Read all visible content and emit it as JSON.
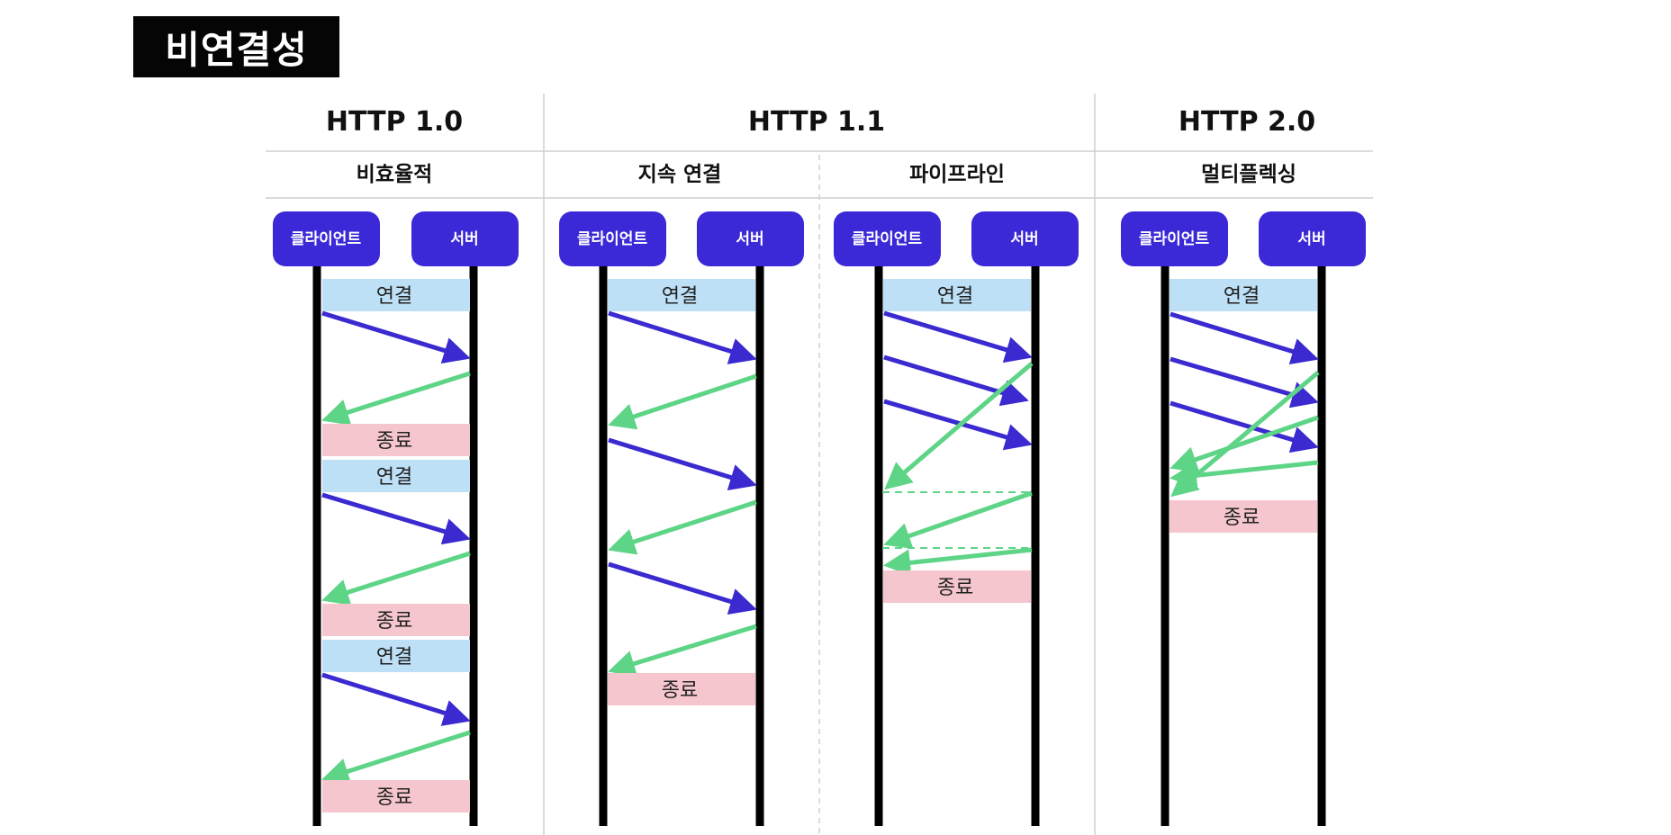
{
  "title": "비연결성",
  "columns": [
    {
      "version": "HTTP 1.0",
      "subtitle": "비효율적"
    },
    {
      "version": "HTTP 1.1",
      "subtitle": "지속 연결"
    },
    {
      "subtitle": "파이프라인"
    },
    {
      "version": "HTTP 2.0",
      "subtitle": "멀티플렉싱"
    }
  ],
  "participants": {
    "client": "클라이언트",
    "server": "서버"
  },
  "labels": {
    "connect": "연결",
    "close": "종료"
  },
  "colors": {
    "participant_box": "#3B28D6",
    "request_arrow": "#3A2AD0",
    "response_arrow": "#5ED487",
    "connect_bar": "#BDE0F7",
    "close_bar": "#F6C6CE",
    "lifeline": "#000000",
    "title_bg": "#050505"
  }
}
